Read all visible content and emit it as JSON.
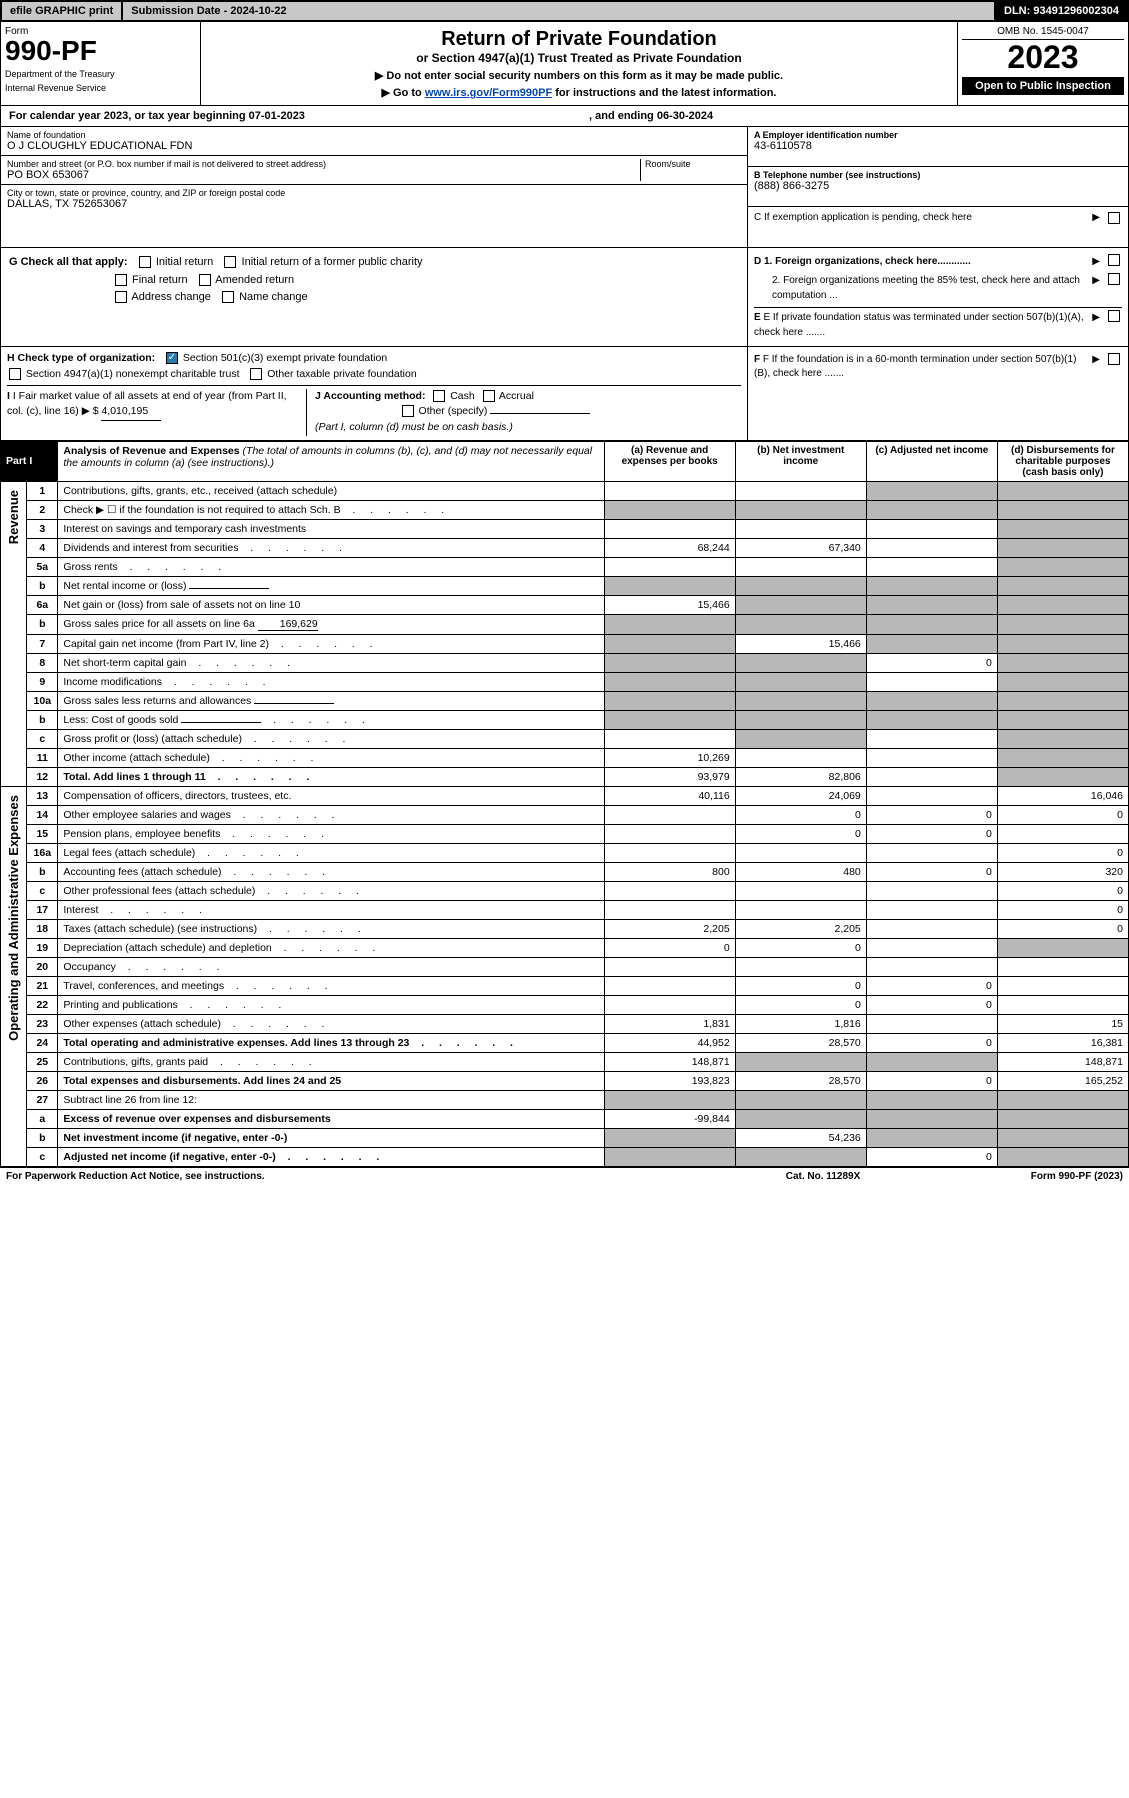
{
  "topbar": {
    "efile": "efile GRAPHIC print",
    "subdate_label": "Submission Date - ",
    "subdate": "2024-10-22",
    "dln_label": "DLN: ",
    "dln": "93491296002304"
  },
  "header": {
    "form_label": "Form",
    "form_number": "990-PF",
    "dept1": "Department of the Treasury",
    "dept2": "Internal Revenue Service",
    "title": "Return of Private Foundation",
    "subtitle": "or Section 4947(a)(1) Trust Treated as Private Foundation",
    "instr1": "▶ Do not enter social security numbers on this form as it may be made public.",
    "instr2_pre": "▶ Go to ",
    "instr2_link": "www.irs.gov/Form990PF",
    "instr2_post": " for instructions and the latest information.",
    "omb": "OMB No. 1545-0047",
    "year": "2023",
    "open_public": "Open to Public Inspection"
  },
  "calyear": {
    "prefix": "For calendar year 2023, or tax year beginning ",
    "begin": "07-01-2023",
    "mid": ", and ending ",
    "end": "06-30-2024"
  },
  "foundation": {
    "name_label": "Name of foundation",
    "name": "O J CLOUGHLY EDUCATIONAL FDN",
    "addr_label": "Number and street (or P.O. box number if mail is not delivered to street address)",
    "room_label": "Room/suite",
    "addr": "PO BOX 653067",
    "city_label": "City or town, state or province, country, and ZIP or foreign postal code",
    "city": "DALLAS, TX  752653067",
    "ein_label": "A Employer identification number",
    "ein": "43-6110578",
    "tel_label": "B Telephone number (see instructions)",
    "tel": "(888) 866-3275",
    "c_label": "C If exemption application is pending, check here",
    "d1": "D 1. Foreign organizations, check here............",
    "d2": "2. Foreign organizations meeting the 85% test, check here and attach computation ...",
    "e": "E If private foundation status was terminated under section 507(b)(1)(A), check here .......",
    "f": "F If the foundation is in a 60-month termination under section 507(b)(1)(B), check here .......",
    "g_label": "G Check all that apply:",
    "g_opts": [
      "Initial return",
      "Initial return of a former public charity",
      "Final return",
      "Amended return",
      "Address change",
      "Name change"
    ],
    "h_label": "H Check type of organization:",
    "h_opt1": "Section 501(c)(3) exempt private foundation",
    "h_opt2": "Section 4947(a)(1) nonexempt charitable trust",
    "h_opt3": "Other taxable private foundation",
    "i_label": "I Fair market value of all assets at end of year (from Part II, col. (c), line 16)",
    "i_value": "4,010,195",
    "j_label": "J Accounting method:",
    "j_opts": [
      "Cash",
      "Accrual",
      "Other (specify)"
    ],
    "j_note": "(Part I, column (d) must be on cash basis.)"
  },
  "part1": {
    "title": "Part I",
    "heading": "Analysis of Revenue and Expenses",
    "heading_note": "(The total of amounts in columns (b), (c), and (d) may not necessarily equal the amounts in column (a) (see instructions).)",
    "cols": {
      "a": "(a) Revenue and expenses per books",
      "b": "(b) Net investment income",
      "c": "(c) Adjusted net income",
      "d": "(d) Disbursements for charitable purposes (cash basis only)"
    },
    "side_revenue": "Revenue",
    "side_expenses": "Operating and Administrative Expenses"
  },
  "rows": [
    {
      "ln": "1",
      "desc": "Contributions, gifts, grants, etc., received (attach schedule)",
      "a": "",
      "b": "",
      "c_shade": true,
      "d_shade": true
    },
    {
      "ln": "2",
      "desc": "Check ▶ ☐ if the foundation is not required to attach Sch. B",
      "a_shade": true,
      "b_shade": true,
      "c_shade": true,
      "d_shade": true,
      "dots": true
    },
    {
      "ln": "3",
      "desc": "Interest on savings and temporary cash investments",
      "a": "",
      "b": "",
      "c": "",
      "d_shade": true
    },
    {
      "ln": "4",
      "desc": "Dividends and interest from securities",
      "a": "68,244",
      "b": "67,340",
      "c": "",
      "d_shade": true,
      "dots": true
    },
    {
      "ln": "5a",
      "desc": "Gross rents",
      "a": "",
      "b": "",
      "c": "",
      "d_shade": true,
      "dots": true
    },
    {
      "ln": "b",
      "desc": "Net rental income or (loss)",
      "a_shade": true,
      "b_shade": true,
      "c_shade": true,
      "d_shade": true,
      "inline_blank": true
    },
    {
      "ln": "6a",
      "desc": "Net gain or (loss) from sale of assets not on line 10",
      "a": "15,466",
      "b_shade": true,
      "c_shade": true,
      "d_shade": true
    },
    {
      "ln": "b",
      "desc": "Gross sales price for all assets on line 6a",
      "a_shade": true,
      "b_shade": true,
      "c_shade": true,
      "d_shade": true,
      "inline_val": "169,629"
    },
    {
      "ln": "7",
      "desc": "Capital gain net income (from Part IV, line 2)",
      "a_shade": true,
      "b": "15,466",
      "c_shade": true,
      "d_shade": true,
      "dots": true
    },
    {
      "ln": "8",
      "desc": "Net short-term capital gain",
      "a_shade": true,
      "b_shade": true,
      "c": "0",
      "d_shade": true,
      "dots": true
    },
    {
      "ln": "9",
      "desc": "Income modifications",
      "a_shade": true,
      "b_shade": true,
      "c": "",
      "d_shade": true,
      "dots": true
    },
    {
      "ln": "10a",
      "desc": "Gross sales less returns and allowances",
      "a_shade": true,
      "b_shade": true,
      "c_shade": true,
      "d_shade": true,
      "inline_blank": true
    },
    {
      "ln": "b",
      "desc": "Less: Cost of goods sold",
      "a_shade": true,
      "b_shade": true,
      "c_shade": true,
      "d_shade": true,
      "inline_blank": true,
      "dots": true
    },
    {
      "ln": "c",
      "desc": "Gross profit or (loss) (attach schedule)",
      "a": "",
      "b_shade": true,
      "c": "",
      "d_shade": true,
      "dots": true
    },
    {
      "ln": "11",
      "desc": "Other income (attach schedule)",
      "a": "10,269",
      "b": "",
      "c": "",
      "d_shade": true,
      "dots": true
    },
    {
      "ln": "12",
      "desc": "Total. Add lines 1 through 11",
      "a": "93,979",
      "b": "82,806",
      "c": "",
      "d_shade": true,
      "bold": true,
      "dots": true
    },
    {
      "ln": "13",
      "desc": "Compensation of officers, directors, trustees, etc.",
      "a": "40,116",
      "b": "24,069",
      "c": "",
      "d": "16,046"
    },
    {
      "ln": "14",
      "desc": "Other employee salaries and wages",
      "a": "",
      "b": "0",
      "c": "0",
      "d": "0",
      "dots": true
    },
    {
      "ln": "15",
      "desc": "Pension plans, employee benefits",
      "a": "",
      "b": "0",
      "c": "0",
      "d": "",
      "dots": true
    },
    {
      "ln": "16a",
      "desc": "Legal fees (attach schedule)",
      "a": "",
      "b": "",
      "c": "",
      "d": "0",
      "dots": true
    },
    {
      "ln": "b",
      "desc": "Accounting fees (attach schedule)",
      "a": "800",
      "b": "480",
      "c": "0",
      "d": "320",
      "dots": true
    },
    {
      "ln": "c",
      "desc": "Other professional fees (attach schedule)",
      "a": "",
      "b": "",
      "c": "",
      "d": "0",
      "dots": true
    },
    {
      "ln": "17",
      "desc": "Interest",
      "a": "",
      "b": "",
      "c": "",
      "d": "0",
      "dots": true
    },
    {
      "ln": "18",
      "desc": "Taxes (attach schedule) (see instructions)",
      "a": "2,205",
      "b": "2,205",
      "c": "",
      "d": "0",
      "dots": true
    },
    {
      "ln": "19",
      "desc": "Depreciation (attach schedule) and depletion",
      "a": "0",
      "b": "0",
      "c": "",
      "d_shade": true,
      "dots": true
    },
    {
      "ln": "20",
      "desc": "Occupancy",
      "a": "",
      "b": "",
      "c": "",
      "d": "",
      "dots": true
    },
    {
      "ln": "21",
      "desc": "Travel, conferences, and meetings",
      "a": "",
      "b": "0",
      "c": "0",
      "d": "",
      "dots": true
    },
    {
      "ln": "22",
      "desc": "Printing and publications",
      "a": "",
      "b": "0",
      "c": "0",
      "d": "",
      "dots": true
    },
    {
      "ln": "23",
      "desc": "Other expenses (attach schedule)",
      "a": "1,831",
      "b": "1,816",
      "c": "",
      "d": "15",
      "dots": true
    },
    {
      "ln": "24",
      "desc": "Total operating and administrative expenses. Add lines 13 through 23",
      "a": "44,952",
      "b": "28,570",
      "c": "0",
      "d": "16,381",
      "bold": true,
      "dots": true
    },
    {
      "ln": "25",
      "desc": "Contributions, gifts, grants paid",
      "a": "148,871",
      "b_shade": true,
      "c_shade": true,
      "d": "148,871",
      "dots": true
    },
    {
      "ln": "26",
      "desc": "Total expenses and disbursements. Add lines 24 and 25",
      "a": "193,823",
      "b": "28,570",
      "c": "0",
      "d": "165,252",
      "bold": true
    },
    {
      "ln": "27",
      "desc": "Subtract line 26 from line 12:",
      "a_shade": true,
      "b_shade": true,
      "c_shade": true,
      "d_shade": true
    },
    {
      "ln": "a",
      "desc": "Excess of revenue over expenses and disbursements",
      "a": "-99,844",
      "b_shade": true,
      "c_shade": true,
      "d_shade": true,
      "bold": true
    },
    {
      "ln": "b",
      "desc": "Net investment income (if negative, enter -0-)",
      "a_shade": true,
      "b": "54,236",
      "c_shade": true,
      "d_shade": true,
      "bold": true
    },
    {
      "ln": "c",
      "desc": "Adjusted net income (if negative, enter -0-)",
      "a_shade": true,
      "b_shade": true,
      "c": "0",
      "d_shade": true,
      "bold": true,
      "dots": true
    }
  ],
  "footer": {
    "left": "For Paperwork Reduction Act Notice, see instructions.",
    "center": "Cat. No. 11289X",
    "right": "Form 990-PF (2023)"
  },
  "colors": {
    "topbar_bg": "#c8c8c8",
    "black": "#000000",
    "shade": "#b8b8b8",
    "link": "#0645ad",
    "check_blue": "#2a7ab0"
  }
}
